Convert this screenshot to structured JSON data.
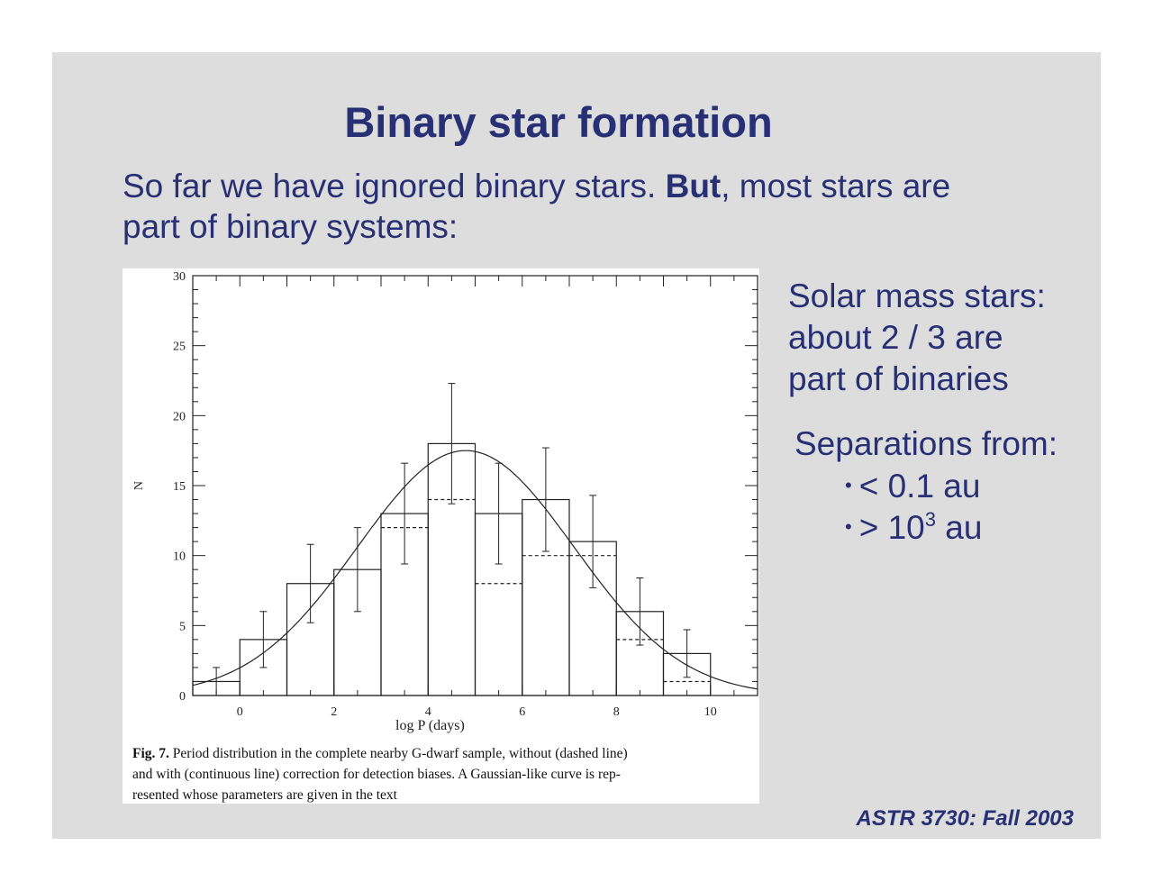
{
  "slide": {
    "title": "Binary star formation",
    "intro_line1_a": "So far we have ignored binary stars. ",
    "intro_line1_bold": "But",
    "intro_line1_b": ", most stars are",
    "intro_line2": "part of binary systems:",
    "side_text": [
      "Solar mass stars:",
      "about 2 / 3 are",
      "part of binaries"
    ],
    "separations_heading": "Separations from:",
    "bullet_symbol": "•",
    "bullet1": "< 0.1 au",
    "bullet2_prefix": "> 10",
    "bullet2_exp": "3",
    "bullet2_suffix": " au",
    "footer": "ASTR 3730: Fall 2003",
    "caption_label": "Fig. 7.",
    "caption_lines": [
      " Period distribution in the complete nearby G-dwarf sample, without (dashed line)",
      "and with (continuous line) correction for detection biases. A Gaussian-like curve is rep-",
      "resented whose parameters are given in the text"
    ]
  },
  "chart_data": {
    "type": "bar",
    "xlabel": "log P (days)",
    "ylabel": "N",
    "xlim": [
      -1,
      11
    ],
    "ylim": [
      0,
      30
    ],
    "x_ticks": [
      0,
      2,
      4,
      6,
      8,
      10
    ],
    "y_ticks": [
      0,
      5,
      10,
      15,
      20,
      25,
      30
    ],
    "bin_edges": [
      -1,
      0,
      1,
      2,
      3,
      4,
      5,
      6,
      7,
      8,
      9,
      10
    ],
    "series": [
      {
        "style": "solid",
        "values": [
          1,
          4,
          8,
          9,
          13,
          18,
          13,
          14,
          11,
          6,
          3
        ],
        "errors": [
          1,
          2,
          2.8,
          3,
          3.6,
          4.3,
          3.6,
          3.7,
          3.3,
          2.4,
          1.7
        ]
      },
      {
        "style": "dashed",
        "values": [
          1,
          4,
          8,
          9,
          12,
          14,
          8,
          10,
          10,
          4,
          1
        ]
      }
    ],
    "gaussian_fit": {
      "mean": 4.8,
      "sigma": 2.3,
      "amplitude": 17.5
    }
  }
}
